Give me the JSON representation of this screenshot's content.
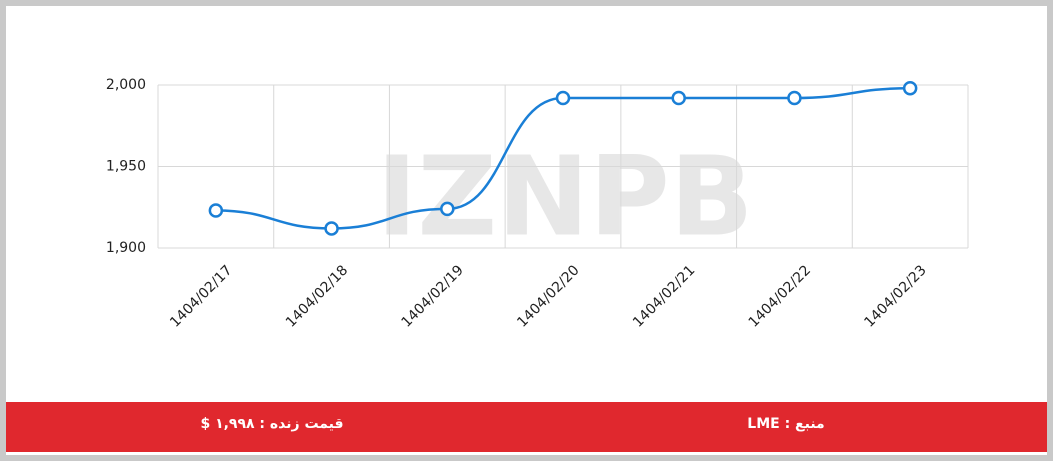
{
  "chart_data": {
    "type": "line",
    "categories": [
      "1404/02/17",
      "1404/02/18",
      "1404/02/19",
      "1404/02/20",
      "1404/02/21",
      "1404/02/22",
      "1404/02/23"
    ],
    "series": [
      {
        "color": "#1a7fd6",
        "values": [
          1923,
          1912,
          1924,
          1992,
          1992,
          1992,
          1998
        ]
      }
    ],
    "ylim": [
      1900,
      2000
    ],
    "yticks": [
      {
        "value": 1900,
        "label": "1,900"
      },
      {
        "value": 1950,
        "label": "1,950"
      },
      {
        "value": 2000,
        "label": "2,000"
      }
    ],
    "grid": true,
    "watermark": "IZNPB"
  },
  "footer": {
    "price": "قیمت زنده : ۱,۹۹۸ $",
    "source": "منبع : LME"
  }
}
